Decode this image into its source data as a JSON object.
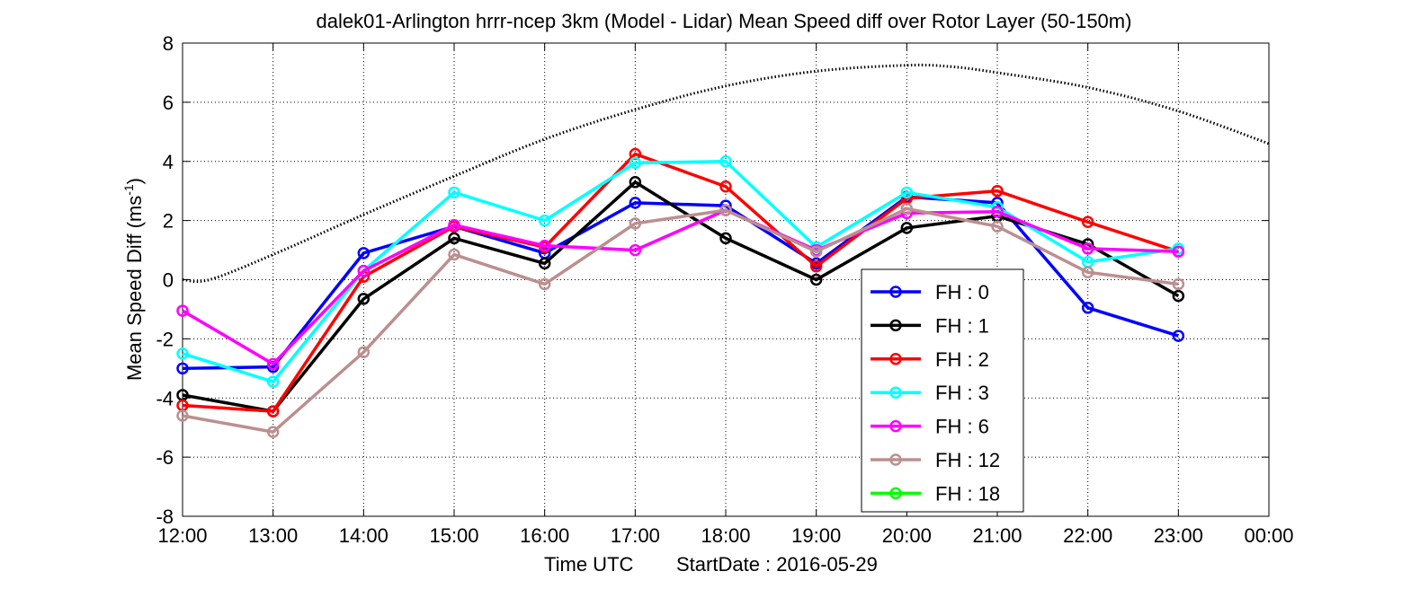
{
  "chart_data": {
    "type": "line",
    "title": "dalek01-Arlington hrrr-ncep 3km (Model - Lidar) Mean Speed diff over Rotor Layer (50-150m)",
    "xlabel_main": "Time UTC",
    "xlabel_start": "StartDate : 2016-05-29",
    "ylabel": "Mean Speed Diff (ms",
    "ylabel_sup": "-1",
    "ylabel_end": ")",
    "x_ticks": [
      "12:00",
      "13:00",
      "14:00",
      "15:00",
      "16:00",
      "17:00",
      "18:00",
      "19:00",
      "20:00",
      "21:00",
      "22:00",
      "23:00",
      "00:00"
    ],
    "ylim": [
      -8,
      8
    ],
    "yticks": [
      "-8",
      "-6",
      "-4",
      "-2",
      "0",
      "2",
      "4",
      "6",
      "8"
    ],
    "ytick_values": [
      -8,
      -6,
      -4,
      -2,
      0,
      2,
      4,
      6,
      8
    ],
    "grid": true,
    "legend_position": "lower-right",
    "series": [
      {
        "name": "FH : 0",
        "color": "#0000ff",
        "values": [
          -3.0,
          -2.95,
          0.9,
          1.8,
          0.9,
          2.6,
          2.5,
          0.55,
          2.8,
          2.6,
          -0.95,
          -1.9
        ]
      },
      {
        "name": "FH : 1",
        "color": "#000000",
        "values": [
          -3.9,
          -4.45,
          -0.65,
          1.4,
          0.55,
          3.3,
          1.4,
          0.0,
          1.75,
          2.15,
          1.2,
          -0.55
        ]
      },
      {
        "name": "FH : 2",
        "color": "#ff0000",
        "values": [
          -4.25,
          -4.45,
          0.1,
          1.8,
          1.1,
          4.25,
          3.15,
          0.45,
          2.75,
          3.0,
          1.95,
          0.95
        ]
      },
      {
        "name": "FH : 3",
        "color": "#00ffff",
        "values": [
          -2.5,
          -3.45,
          0.3,
          2.95,
          2.0,
          3.95,
          4.0,
          1.1,
          2.95,
          2.45,
          0.6,
          1.05
        ]
      },
      {
        "name": "FH : 6",
        "color": "#ff00ff",
        "values": [
          -1.05,
          -2.85,
          0.3,
          1.85,
          1.15,
          1.0,
          2.35,
          1.0,
          2.25,
          2.3,
          1.05,
          0.95
        ]
      },
      {
        "name": "FH : 12",
        "color": "#bc8f8f",
        "values": [
          -4.6,
          -5.15,
          -2.45,
          0.85,
          -0.15,
          1.9,
          2.35,
          0.95,
          2.4,
          1.8,
          0.25,
          -0.15
        ]
      },
      {
        "name": "FH : 18",
        "color": "#00ff00",
        "values": []
      }
    ],
    "reference_curve": {
      "style": "dotted",
      "color": "#000000",
      "x": [
        0.0,
        0.3,
        1.0,
        2.0,
        3.0,
        4.0,
        5.0,
        6.0,
        7.0,
        8.0,
        8.5,
        9.0,
        10.0,
        11.0,
        12.0
      ],
      "values": [
        0.0,
        0.0,
        0.85,
        2.2,
        3.5,
        4.75,
        5.75,
        6.55,
        7.05,
        7.25,
        7.2,
        7.0,
        6.5,
        5.7,
        4.6
      ]
    }
  }
}
